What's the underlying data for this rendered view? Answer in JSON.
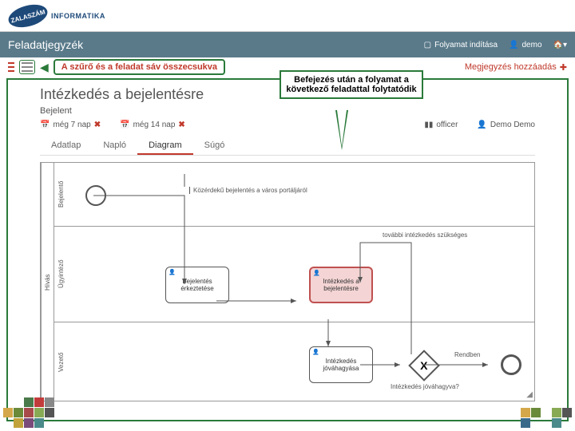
{
  "logo": {
    "inner": "ZALASZÁM",
    "outer": "INFORMATIKA"
  },
  "header": {
    "title": "Feladatjegyzék",
    "process_start": "Folyamat indítása",
    "user": "demo",
    "home_icon": "home"
  },
  "subbar": {
    "callout": "A szűrő és a feladat sáv összecsukva",
    "comment_add": "Megjegyzés hozzáadás"
  },
  "process": {
    "title": "Intézkedés a bejelentésre",
    "submitter": "Bejelent",
    "due1": "még 7 nap",
    "due2": "még 14 nap",
    "role": "officer",
    "assignee": "Demo Demo"
  },
  "tabs": {
    "items": [
      "Adatlap",
      "Napló",
      "Diagram",
      "Súgó"
    ],
    "active_index": 2
  },
  "annotation": "Befejezés után a folyamat a következő feladattal folytatódik",
  "diagram": {
    "pool_label": "Hívás",
    "lanes": {
      "lane1": "Bejelentő",
      "lane2": "Ügyintéző",
      "lane3": "Vezető"
    },
    "tasks": {
      "task1": "Bejelentés érkeztetése",
      "task2": "Intézkedés a bejelentésre",
      "task3": "Intézkedés jóváhagyása"
    },
    "flow_labels": {
      "start_msg": "Közérdekű bejelentés a város portáljáról",
      "further": "további intézkedés szükséges",
      "gateway_q": "Intézkedés jóváhagyva?",
      "yes": "Rendben"
    },
    "colors": {
      "border": "#2a7a3a",
      "highlight_bg": "#f4d4d4",
      "highlight_border": "#c05050",
      "header_bg": "#5a7a8a",
      "accent": "#c0392b"
    }
  },
  "mosaic_colors": [
    "#9acd32",
    "#e8a33d",
    "#4a7a4a",
    "#c23b3b",
    "#888",
    "#d4a84a",
    "#6a8a3a",
    "#a84a4a",
    "#88aa55",
    "#555",
    "#3a6a8a",
    "#c2a23b",
    "#7a4a7a",
    "#4a8a8a",
    "#aa6633"
  ]
}
